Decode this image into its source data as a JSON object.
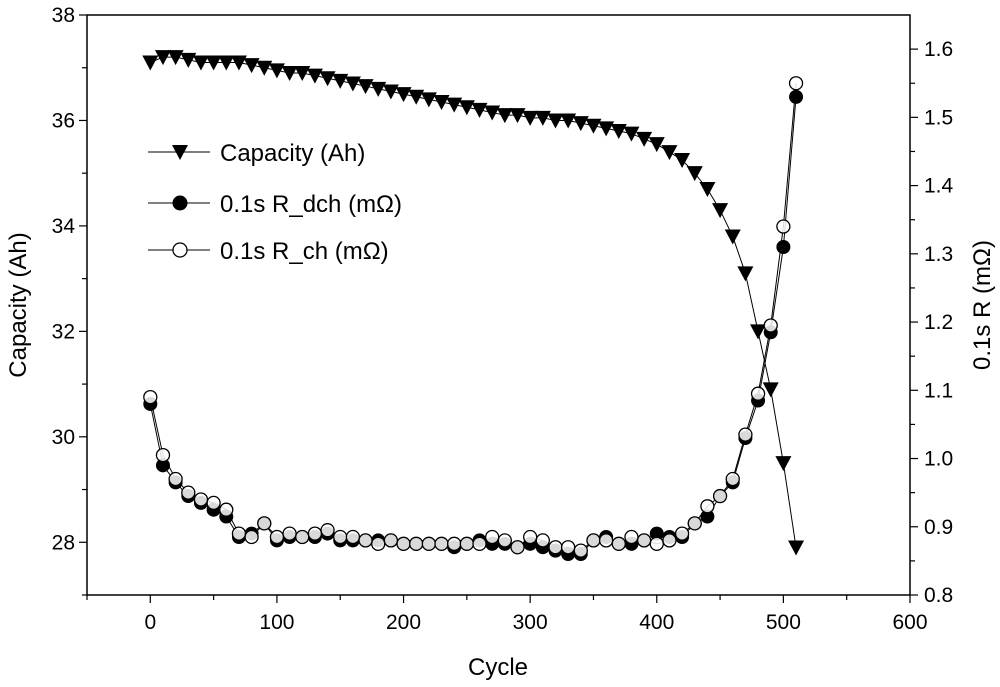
{
  "chart_data": {
    "type": "scatter",
    "xlabel": "Cycle",
    "ylabel_left": "Capacity (Ah)",
    "ylabel_right": "0.1s R (mΩ)",
    "xlim": [
      -50,
      600
    ],
    "ylim_left": [
      27,
      38
    ],
    "ylim_right": [
      0.8,
      1.65
    ],
    "x_ticks": [
      0,
      100,
      200,
      300,
      400,
      500,
      600
    ],
    "y_left_ticks": [
      28,
      30,
      32,
      34,
      36,
      38
    ],
    "y_right_ticks": [
      0.8,
      0.9,
      1.0,
      1.1,
      1.2,
      1.3,
      1.4,
      1.5,
      1.6
    ],
    "y_right_tick_labels": [
      "0.8",
      "0.9",
      "1.0",
      "1.1",
      "1.2",
      "1.3",
      "1.4",
      "1.5",
      "1.6"
    ],
    "legend": [
      {
        "label": "Capacity (Ah)",
        "marker": "triangle-down-filled"
      },
      {
        "label": "0.1s R_dch (mΩ)",
        "marker": "circle-filled"
      },
      {
        "label": "0.1s R_ch (mΩ)",
        "marker": "circle-open"
      }
    ],
    "series": [
      {
        "name": "Capacity (Ah)",
        "axis": "left",
        "marker": "triangle-down-filled",
        "x": [
          0,
          10,
          20,
          30,
          40,
          50,
          60,
          70,
          80,
          90,
          100,
          110,
          120,
          130,
          140,
          150,
          160,
          170,
          180,
          190,
          200,
          210,
          220,
          230,
          240,
          250,
          260,
          270,
          280,
          290,
          300,
          310,
          320,
          330,
          340,
          350,
          360,
          370,
          380,
          390,
          400,
          410,
          420,
          430,
          440,
          450,
          460,
          470,
          480,
          490,
          500,
          510
        ],
        "values": [
          37.1,
          37.2,
          37.2,
          37.15,
          37.1,
          37.1,
          37.1,
          37.1,
          37.05,
          37.0,
          36.95,
          36.9,
          36.9,
          36.85,
          36.8,
          36.75,
          36.7,
          36.65,
          36.6,
          36.55,
          36.5,
          36.45,
          36.4,
          36.35,
          36.3,
          36.25,
          36.2,
          36.15,
          36.1,
          36.1,
          36.05,
          36.05,
          36.0,
          36.0,
          35.95,
          35.9,
          35.85,
          35.8,
          35.75,
          35.65,
          35.55,
          35.4,
          35.25,
          35.0,
          34.7,
          34.3,
          33.8,
          33.1,
          32.0,
          30.9,
          29.5,
          27.9
        ]
      },
      {
        "name": "0.1s R_dch (mΩ)",
        "axis": "right",
        "marker": "circle-filled",
        "x": [
          0,
          10,
          20,
          30,
          40,
          50,
          60,
          70,
          80,
          90,
          100,
          110,
          120,
          130,
          140,
          150,
          160,
          170,
          180,
          190,
          200,
          210,
          220,
          230,
          240,
          250,
          260,
          270,
          280,
          290,
          300,
          310,
          320,
          330,
          340,
          350,
          360,
          370,
          380,
          390,
          400,
          410,
          420,
          430,
          440,
          450,
          460,
          470,
          480,
          490,
          500,
          510
        ],
        "values": [
          1.08,
          0.99,
          0.965,
          0.945,
          0.935,
          0.925,
          0.915,
          0.885,
          0.89,
          0.905,
          0.88,
          0.885,
          0.885,
          0.885,
          0.89,
          0.88,
          0.88,
          0.88,
          0.88,
          0.88,
          0.875,
          0.875,
          0.875,
          0.875,
          0.87,
          0.875,
          0.88,
          0.875,
          0.875,
          0.87,
          0.875,
          0.87,
          0.865,
          0.86,
          0.86,
          0.88,
          0.885,
          0.875,
          0.875,
          0.88,
          0.89,
          0.885,
          0.885,
          0.905,
          0.915,
          0.945,
          0.965,
          1.03,
          1.085,
          1.185,
          1.31,
          1.53
        ]
      },
      {
        "name": "0.1s R_ch (mΩ)",
        "axis": "right",
        "marker": "circle-open",
        "x": [
          0,
          10,
          20,
          30,
          40,
          50,
          60,
          70,
          80,
          90,
          100,
          110,
          120,
          130,
          140,
          150,
          160,
          170,
          180,
          190,
          200,
          210,
          220,
          230,
          240,
          250,
          260,
          270,
          280,
          290,
          300,
          310,
          320,
          330,
          340,
          350,
          360,
          370,
          380,
          390,
          400,
          410,
          420,
          430,
          440,
          450,
          460,
          470,
          480,
          490,
          500,
          510
        ],
        "values": [
          1.09,
          1.005,
          0.97,
          0.95,
          0.94,
          0.935,
          0.925,
          0.89,
          0.885,
          0.905,
          0.885,
          0.89,
          0.885,
          0.89,
          0.895,
          0.885,
          0.885,
          0.88,
          0.875,
          0.88,
          0.875,
          0.875,
          0.875,
          0.875,
          0.875,
          0.875,
          0.875,
          0.885,
          0.88,
          0.87,
          0.885,
          0.88,
          0.87,
          0.87,
          0.865,
          0.88,
          0.88,
          0.875,
          0.885,
          0.88,
          0.875,
          0.88,
          0.89,
          0.905,
          0.93,
          0.945,
          0.97,
          1.035,
          1.095,
          1.195,
          1.34,
          1.55
        ]
      }
    ]
  }
}
